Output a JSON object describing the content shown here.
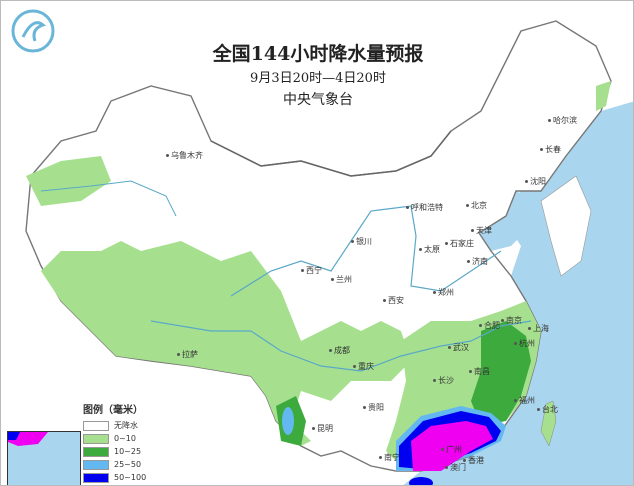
{
  "header": {
    "title": "全国144小时降水量预报",
    "period": "9月3日20时—4日20时",
    "issuer": "中央气象台"
  },
  "logo": {
    "icon": "cma-logo",
    "color": "#6bb6d8"
  },
  "colors": {
    "sea": "#a9d6ee",
    "land": "#ffffff",
    "border": "#888888",
    "river": "#5aa8c8"
  },
  "cities": [
    "乌鲁木齐",
    "拉萨",
    "西宁",
    "兰州",
    "银川",
    "呼和浩特",
    "北京",
    "天津",
    "石家庄",
    "太原",
    "济南",
    "郑州",
    "西安",
    "成都",
    "重庆",
    "贵阳",
    "昆明",
    "南宁",
    "长沙",
    "武汉",
    "南昌",
    "合肥",
    "南京",
    "上海",
    "杭州",
    "福州",
    "台北",
    "广州",
    "香港",
    "澳门",
    "哈尔滨",
    "长春",
    "沈阳"
  ],
  "legend": {
    "title": "图例（毫米）",
    "items": [
      {
        "label": "无降水",
        "color": "#ffffff"
      },
      {
        "label": "0~10",
        "color": "#a6e08e"
      },
      {
        "label": "10~25",
        "color": "#3daa3d"
      },
      {
        "label": "25~50",
        "color": "#63b8f0"
      },
      {
        "label": "50~100",
        "color": "#0000f0"
      },
      {
        "label": "",
        "color": "#f000f0"
      }
    ]
  }
}
